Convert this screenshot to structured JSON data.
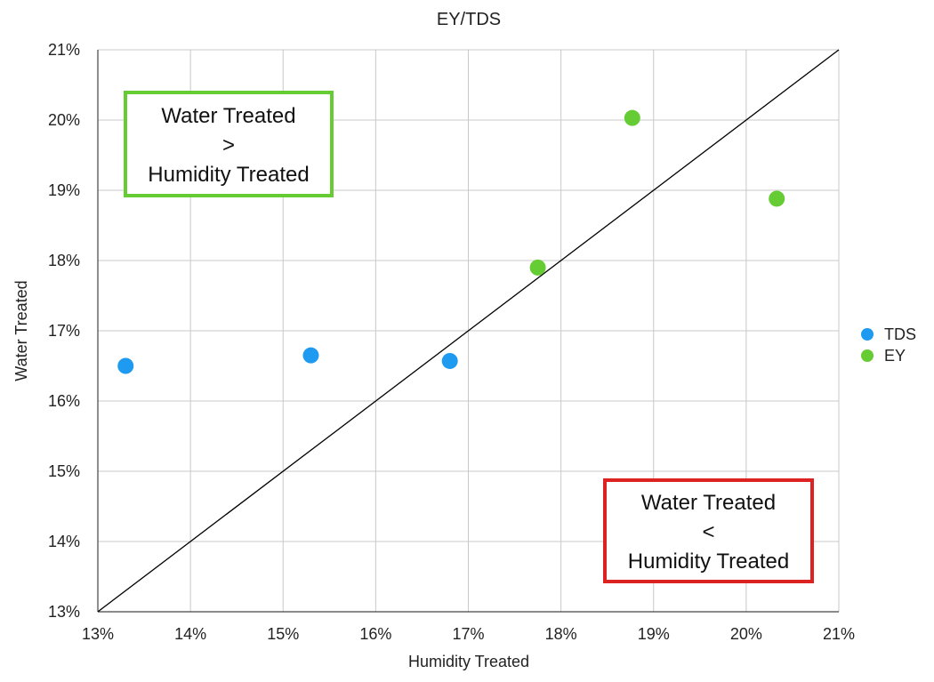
{
  "chart_data": {
    "type": "scatter",
    "title": "EY/TDS",
    "xlabel": "Humidity Treated",
    "ylabel": "Water Treated",
    "xlim": [
      13,
      21
    ],
    "ylim": [
      13,
      21
    ],
    "x_ticks": [
      "13%",
      "14%",
      "15%",
      "16%",
      "17%",
      "18%",
      "19%",
      "20%",
      "21%"
    ],
    "y_ticks": [
      "13%",
      "14%",
      "15%",
      "16%",
      "17%",
      "18%",
      "19%",
      "20%",
      "21%"
    ],
    "grid": true,
    "legend_position": "right",
    "series": [
      {
        "name": "TDS",
        "color": "#1e9bf0",
        "points": [
          {
            "x": 13.3,
            "y": 16.5
          },
          {
            "x": 15.3,
            "y": 16.65
          },
          {
            "x": 16.8,
            "y": 16.57
          }
        ]
      },
      {
        "name": "EY",
        "color": "#66cc33",
        "points": [
          {
            "x": 17.75,
            "y": 17.9
          },
          {
            "x": 18.77,
            "y": 20.03
          },
          {
            "x": 20.33,
            "y": 18.88
          }
        ]
      }
    ],
    "reference_line": {
      "type": "y=x",
      "color": "#000000"
    },
    "annotations": [
      {
        "id": "upper",
        "lines": [
          "Water Treated",
          ">",
          "Humidity Treated"
        ],
        "border_color": "#66cc33"
      },
      {
        "id": "lower",
        "lines": [
          "Water Treated",
          "<",
          "Humidity Treated"
        ],
        "border_color": "#dd2222"
      }
    ]
  }
}
